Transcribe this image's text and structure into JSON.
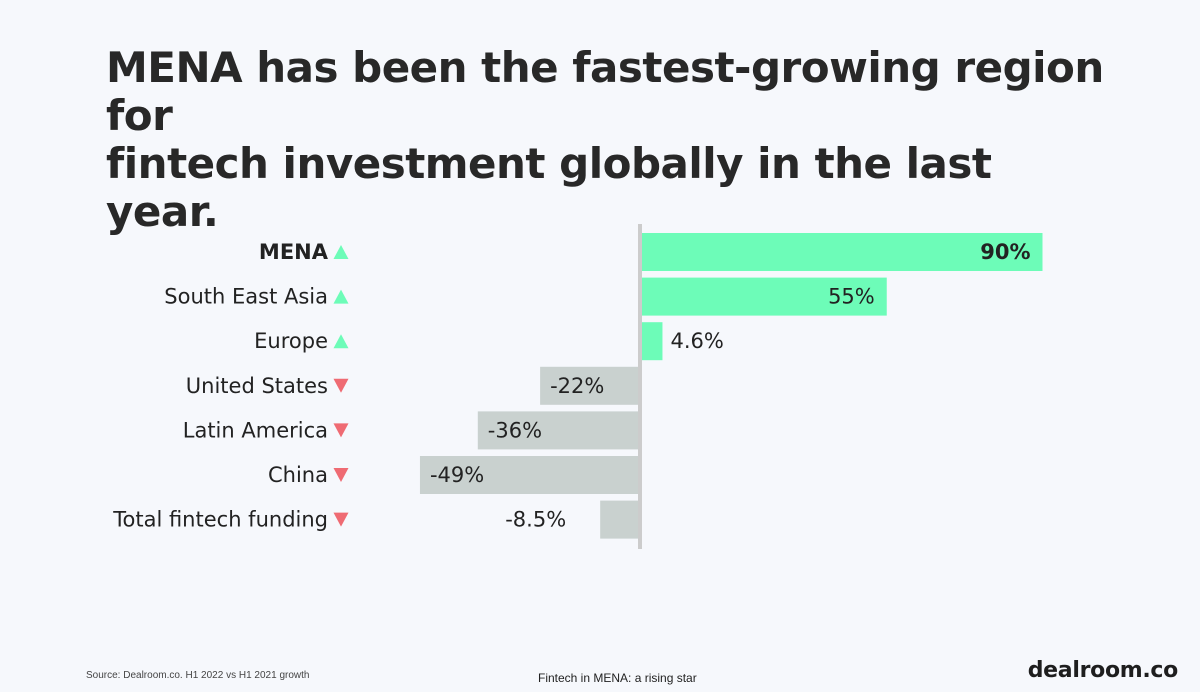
{
  "header": {
    "title_line1": "MENA has been the fastest-growing region for",
    "title_line2": "fintech investment globally in the last year."
  },
  "footer": {
    "source": "Source: Dealroom.co.  H1 2022 vs H1 2021 growth",
    "caption": "Fintech in MENA: a rising star",
    "brand": "dealroom.co"
  },
  "colors": {
    "positive": "#6dfcb8",
    "negative": "#c9d1cf",
    "up_arrow": "#6dfcb8",
    "down_arrow": "#ef6b73",
    "axis": "#cccccc"
  },
  "chart_data": {
    "type": "bar",
    "orientation": "horizontal",
    "title": "MENA has been the fastest-growing region for fintech investment globally in the last year.",
    "xlabel": "",
    "ylabel": "",
    "unit": "%",
    "xlim": [
      -50,
      90
    ],
    "grid": false,
    "categories": [
      "MENA",
      "South East Asia",
      "Europe",
      "United States",
      "Latin America",
      "China",
      "Total fintech funding"
    ],
    "values": [
      90,
      55,
      4.6,
      -22,
      -36,
      -49,
      -8.5
    ],
    "labels": [
      "90%",
      "55%",
      "4.6%",
      "-22%",
      "-36%",
      "-49%",
      "-8.5%"
    ],
    "trend": [
      "up",
      "up",
      "up",
      "down",
      "down",
      "down",
      "down"
    ],
    "highlight": "MENA"
  }
}
